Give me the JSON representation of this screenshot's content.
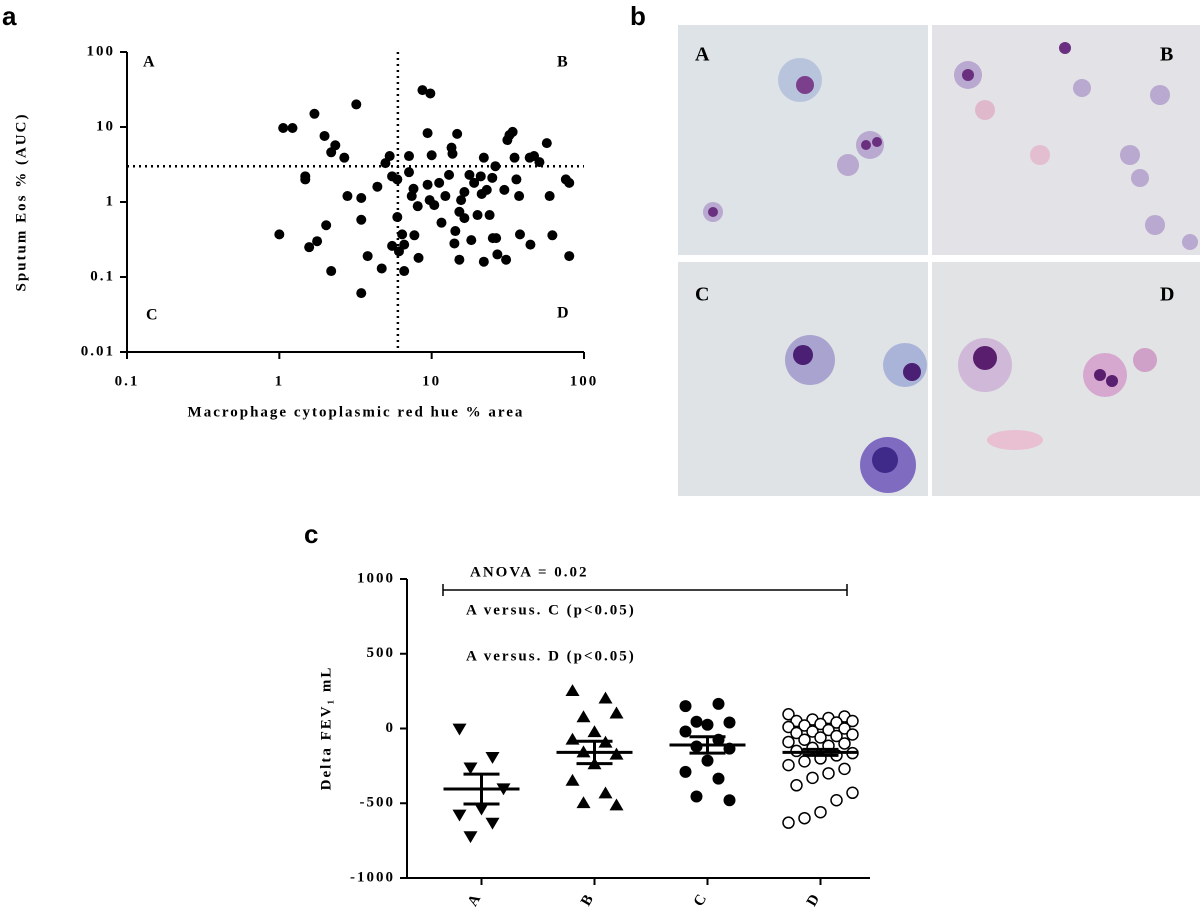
{
  "panel_labels": [
    "a",
    "b",
    "c"
  ],
  "micrograph_labels": [
    "A",
    "B",
    "C",
    "D"
  ],
  "chart_data": [
    {
      "type": "scatter",
      "x_label": "Macrophage cytoplasmic red hue % area",
      "y_label": "Sputum Eos % (AUC)",
      "xscale": "log",
      "yscale": "log",
      "xlim": [
        0.1,
        100
      ],
      "ylim": [
        0.01,
        100
      ],
      "xticks": [
        0.1,
        1,
        10,
        100
      ],
      "yticks": [
        0.01,
        0.1,
        1,
        10,
        100
      ],
      "quadrant_labels": [
        "A",
        "B",
        "C",
        "D"
      ],
      "reference_lines": {
        "x": 6,
        "y": 3
      },
      "color": "#000000",
      "x": [
        1.0,
        1.06,
        1.22,
        1.48,
        1.48,
        1.57,
        1.7,
        1.77,
        1.98,
        2.03,
        2.19,
        2.33,
        2.19,
        2.67,
        3.2,
        2.8,
        3.45,
        3.45,
        3.45,
        3.8,
        4.4,
        4.7,
        4.97,
        5.3,
        5.5,
        5.5,
        5.95,
        5.95,
        6.1,
        6.6,
        6.6,
        6.4,
        7.1,
        7.1,
        7.4,
        7.6,
        7.7,
        8.1,
        8.2,
        8.7,
        9.4,
        9.8,
        9.4,
        10,
        9.7,
        10.4,
        11.2,
        11.6,
        12.3,
        13,
        13.5,
        13.7,
        14.1,
        14.3,
        14.7,
        15.2,
        15.2,
        15.6,
        16.4,
        16.4,
        17.7,
        18.2,
        19,
        20,
        21,
        21.3,
        22,
        22,
        23,
        24,
        25,
        25.2,
        26.2,
        26.5,
        27,
        30,
        30.8,
        31.4,
        32.4,
        34,
        35,
        36,
        37.5,
        38,
        44,
        44.5,
        47,
        51,
        57,
        59.5,
        62,
        76,
        80,
        80
      ],
      "values": [
        0.37,
        9.7,
        9.7,
        2.0,
        2.2,
        0.25,
        15,
        0.3,
        7.6,
        0.49,
        4.6,
        5.7,
        0.12,
        3.9,
        20,
        1.2,
        1.13,
        0.58,
        0.061,
        0.19,
        1.6,
        0.13,
        3.3,
        4.1,
        2.2,
        0.26,
        2.0,
        0.63,
        0.22,
        0.12,
        0.27,
        0.37,
        4.1,
        2.5,
        1.2,
        1.5,
        0.36,
        0.88,
        0.18,
        31,
        1.7,
        28,
        8.3,
        4.2,
        1.06,
        0.91,
        1.8,
        0.53,
        1.2,
        2.3,
        5.3,
        4.4,
        0.28,
        0.41,
        8.1,
        0.74,
        0.17,
        1.06,
        1.36,
        0.61,
        2.3,
        0.31,
        1.8,
        0.67,
        2.2,
        1.28,
        3.9,
        0.16,
        1.45,
        0.67,
        2.1,
        0.33,
        3.0,
        0.33,
        0.2,
        1.45,
        0.17,
        6.7,
        7.8,
        8.6,
        3.9,
        2.0,
        1.2,
        0.37,
        3.9,
        0.27,
        4.1,
        3.4,
        6.1,
        1.2,
        0.36,
        2.0,
        1.8,
        0.19
      ]
    },
    {
      "type": "dot",
      "y_label": "Delta FEV₁ mL",
      "categories": [
        "A",
        "B",
        "C",
        "D"
      ],
      "markers": [
        "triangle-down",
        "triangle-up",
        "circle",
        "circle-open"
      ],
      "color": "#000000",
      "ylim": [
        -1000,
        1000
      ],
      "yticks": [
        -1000,
        -500,
        0,
        500,
        1000
      ],
      "annotations": [
        "ANOVA = 0.02",
        "A versus. C (p<0.05)",
        "A versus. D (p<0.05)"
      ],
      "values": [
        [
          0,
          -190,
          -260,
          -400,
          -535,
          -575,
          -630,
          -720
        ],
        [
          250,
          200,
          75,
          100,
          -25,
          -75,
          -95,
          -160,
          -175,
          -240,
          -350,
          -435,
          -500,
          -515
        ],
        [
          150,
          165,
          45,
          40,
          25,
          -20,
          -75,
          -120,
          -135,
          -215,
          -290,
          -335,
          -455,
          -480
        ],
        [
          95,
          80,
          70,
          60,
          50,
          50,
          40,
          30,
          20,
          10,
          0,
          -10,
          -20,
          -30,
          -40,
          -50,
          -60,
          -75,
          -90,
          -100,
          -115,
          -130,
          -150,
          -165,
          -180,
          -200,
          -220,
          -245,
          -270,
          -300,
          -330,
          -380,
          -430,
          -480,
          -560,
          -600,
          -630
        ]
      ],
      "means": [
        -405,
        -160,
        -110,
        -160
      ],
      "sems": [
        100,
        75,
        55,
        20
      ]
    }
  ]
}
